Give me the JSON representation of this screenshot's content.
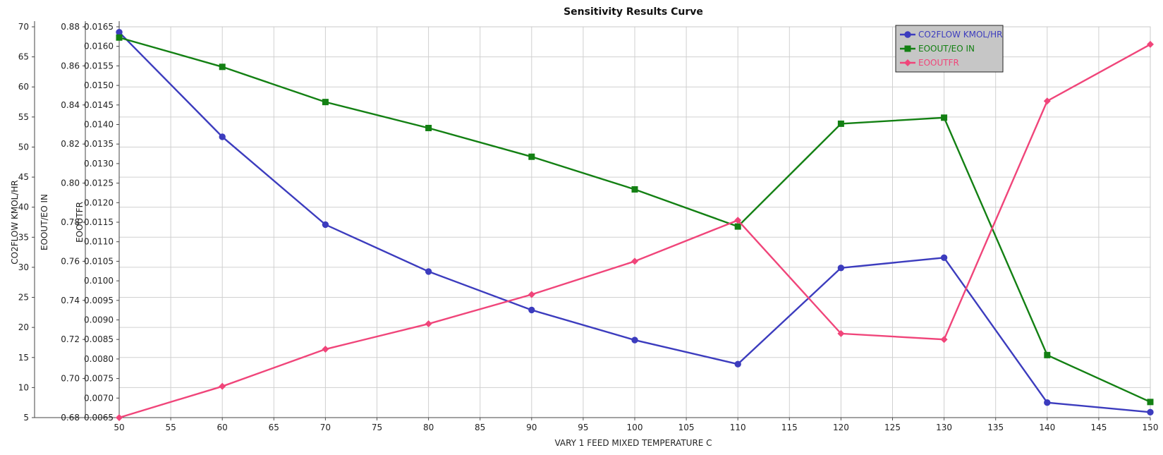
{
  "chart_data": {
    "type": "line",
    "title": "Sensitivity Results Curve",
    "xlabel": "VARY   1 FEED MIXED TEMPERATURE C",
    "x": [
      50,
      60,
      70,
      80,
      90,
      100,
      110,
      120,
      130,
      140,
      150
    ],
    "xlim": [
      50,
      150
    ],
    "x_ticks": [
      "50",
      "55",
      "60",
      "65",
      "70",
      "75",
      "80",
      "85",
      "90",
      "95",
      "100",
      "105",
      "110",
      "115",
      "120",
      "125",
      "130",
      "135",
      "140",
      "145",
      "150"
    ],
    "grid": true,
    "legend_position": "top-right",
    "y_axes": [
      {
        "label": "CO2FLOW KMOL/HR",
        "lim": [
          5,
          70
        ],
        "ticks": [
          "5",
          "10",
          "15",
          "20",
          "25",
          "30",
          "35",
          "40",
          "45",
          "50",
          "55",
          "60",
          "65",
          "70"
        ]
      },
      {
        "label": "EOOUT/EO IN",
        "lim": [
          0.68,
          0.88
        ],
        "ticks": [
          "0.68",
          "0.70",
          "0.72",
          "0.74",
          "0.76",
          "0.78",
          "0.80",
          "0.82",
          "0.84",
          "0.86",
          "0.88"
        ]
      },
      {
        "label": "EOOUTFR",
        "lim": [
          0.0065,
          0.0165
        ],
        "ticks": [
          "0.0065",
          "0.0070",
          "0.0075",
          "0.0080",
          "0.0085",
          "0.0090",
          "0.0095",
          "0.0100",
          "0.0105",
          "0.0110",
          "0.0115",
          "0.0120",
          "0.0125",
          "0.0130",
          "0.0135",
          "0.0140",
          "0.0145",
          "0.0150",
          "0.0155",
          "0.0160",
          "0.0165"
        ]
      }
    ],
    "series": [
      {
        "name": "CO2FLOW KMOL/HR",
        "axis": 0,
        "color": "#3c3cbe",
        "marker": "circle",
        "values": [
          69.1,
          51.7,
          37.1,
          29.3,
          22.9,
          17.9,
          13.9,
          29.9,
          31.6,
          7.5,
          5.9
        ]
      },
      {
        "name": "EOOUT/EO IN",
        "axis": 1,
        "color": "#138013",
        "marker": "square",
        "values": [
          0.8745,
          0.8595,
          0.8415,
          0.8282,
          0.8135,
          0.7968,
          0.7778,
          0.8304,
          0.8335,
          0.712,
          0.688
        ]
      },
      {
        "name": "EOOUTFR",
        "axis": 2,
        "color": "#f0457a",
        "marker": "diamond",
        "values": [
          0.0065,
          0.0073,
          0.00825,
          0.0089,
          0.00965,
          0.0105,
          0.01155,
          0.00865,
          0.0085,
          0.0146,
          0.01605
        ]
      }
    ]
  }
}
